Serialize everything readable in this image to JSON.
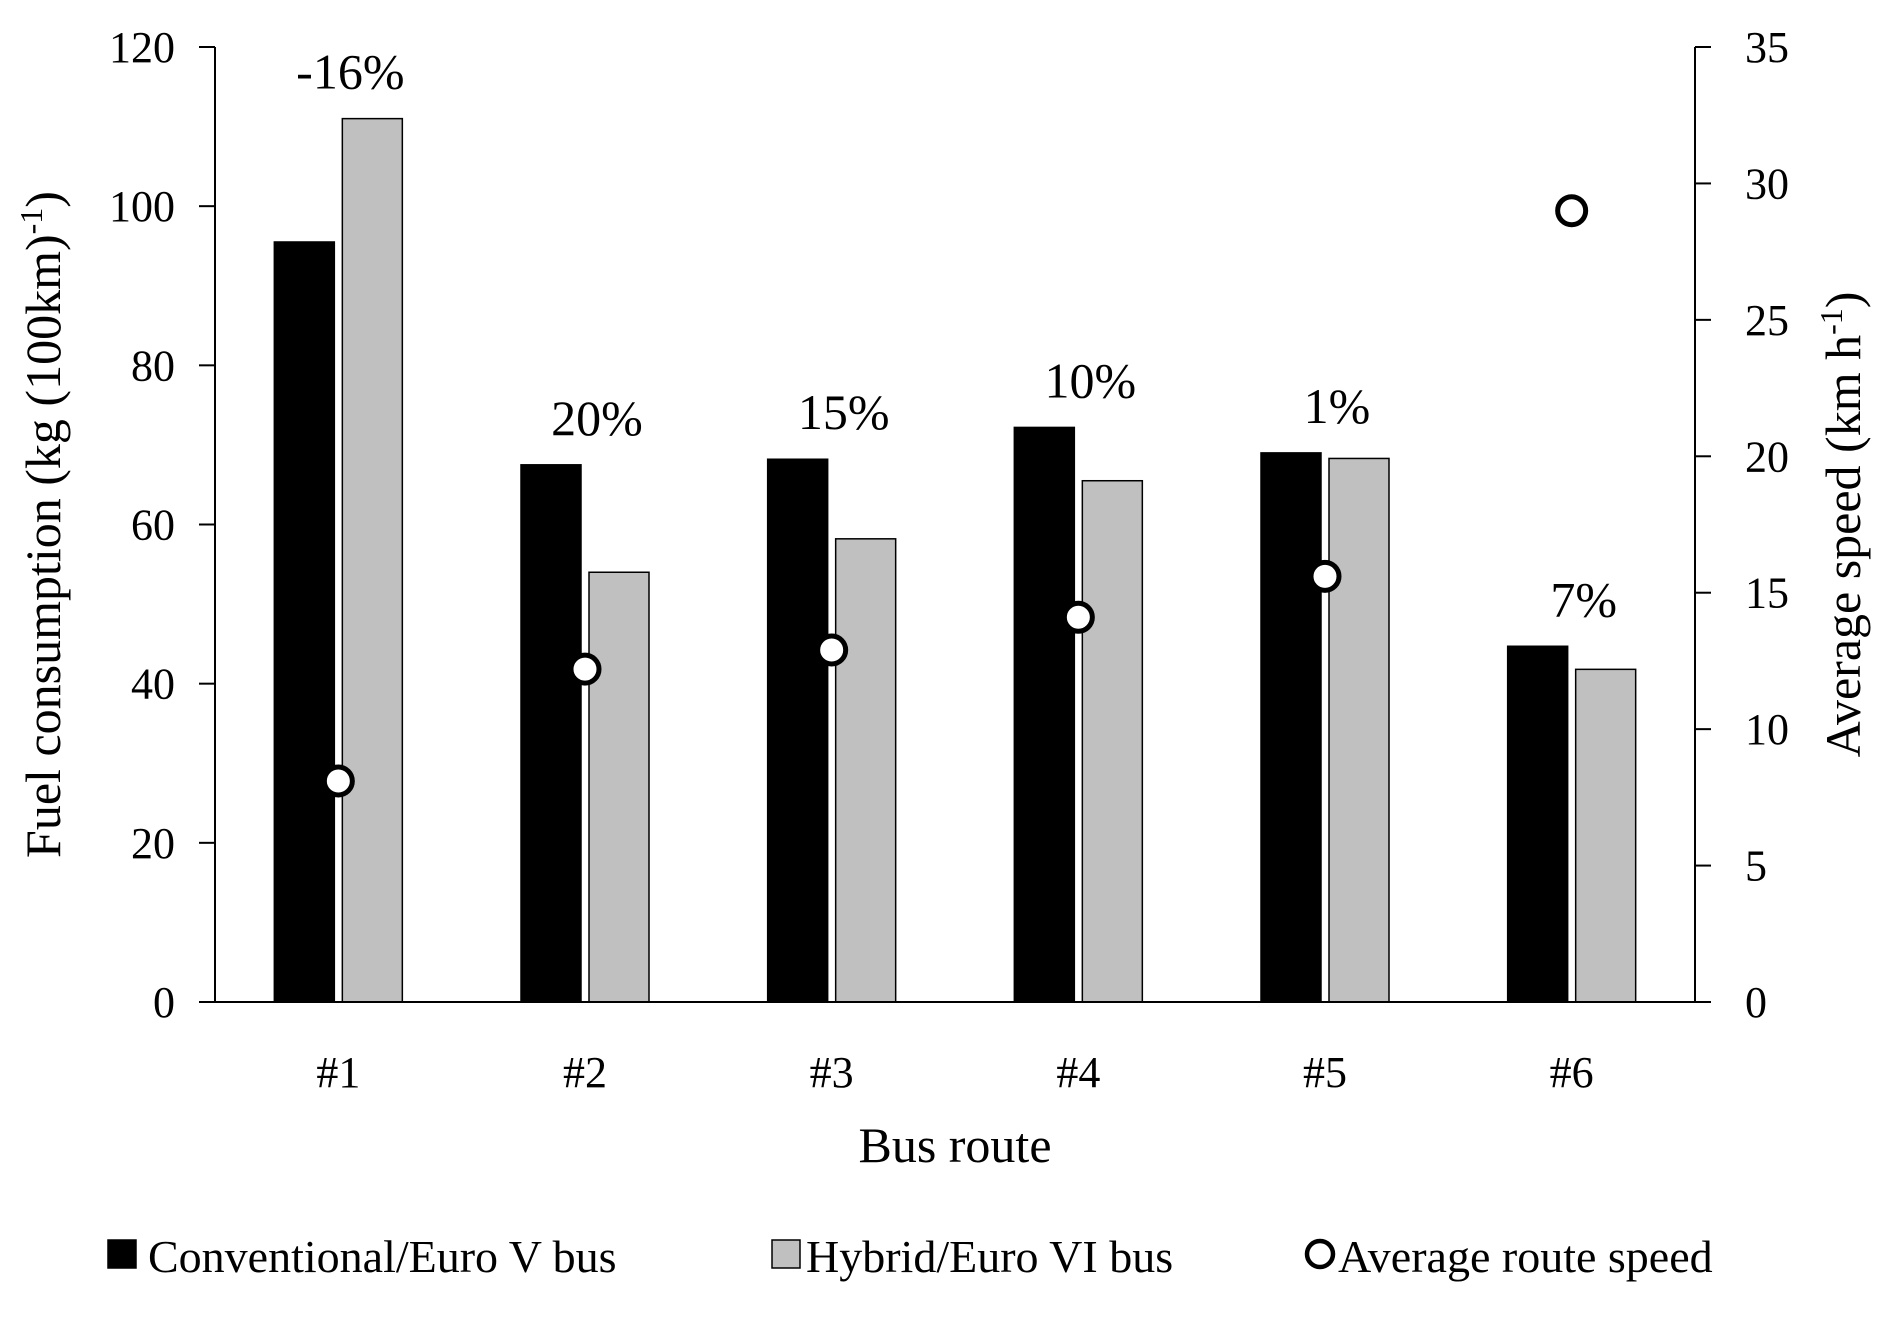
{
  "chart_data": {
    "type": "bar",
    "xlabel": "Bus route",
    "ylabel_left": "Fuel consumption (kg (100km)",
    "ylabel_left_sup": "-1",
    "ylabel_left_close": ")",
    "ylabel_right": "Average  speed (km h",
    "ylabel_right_sup": "-1",
    "ylabel_right_close": ")",
    "categories": [
      "#1",
      "#2",
      "#3",
      "#4",
      "#5",
      "#6"
    ],
    "ylim_left": [
      0,
      120
    ],
    "yticks_left": [
      "0",
      "20",
      "40",
      "60",
      "80",
      "100",
      "120"
    ],
    "ylim_right": [
      0,
      35
    ],
    "yticks_right": [
      "0",
      "5",
      "10",
      "15",
      "20",
      "25",
      "30",
      "35"
    ],
    "series": [
      {
        "name": "Conventional/Euro V bus",
        "type": "bar",
        "axis": "left",
        "color": "#000000",
        "values": [
          95.5,
          67.5,
          68.2,
          72.2,
          69.0,
          44.7
        ]
      },
      {
        "name": "Hybrid/Euro VI bus",
        "type": "bar",
        "axis": "left",
        "color": "#c0c0c0",
        "values": [
          111.0,
          54.0,
          58.2,
          65.5,
          68.3,
          41.8
        ]
      },
      {
        "name": "Average route speed",
        "type": "scatter",
        "axis": "right",
        "color": "#ffffff",
        "values": [
          8.1,
          12.2,
          12.9,
          14.1,
          15.6,
          29.0
        ]
      }
    ],
    "annotations": [
      "-16%",
      "20%",
      "15%",
      "10%",
      "1%",
      "7%"
    ],
    "grid": false,
    "legend": "bottom"
  }
}
